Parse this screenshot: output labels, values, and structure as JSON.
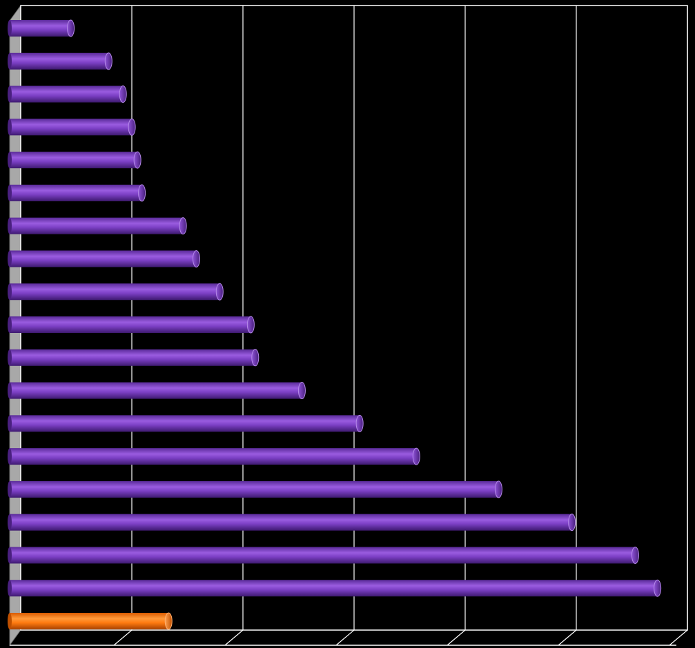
{
  "chart_data": {
    "type": "bar",
    "orientation": "horizontal",
    "style": "3d-cylinder",
    "title": "",
    "xlabel": "",
    "ylabel": "",
    "grid": true,
    "legend": "none",
    "categories": [
      "",
      "",
      "",
      "",
      "",
      "",
      "",
      "",
      "",
      "",
      "",
      "",
      "",
      "",
      "",
      "",
      "",
      "",
      ""
    ],
    "values": [
      5.5,
      8.9,
      10.2,
      11.0,
      11.5,
      11.9,
      15.6,
      16.8,
      18.9,
      21.7,
      22.1,
      26.3,
      31.5,
      36.6,
      44.0,
      50.6,
      56.3,
      58.3,
      14.3
    ],
    "highlight_index": 18,
    "xlim": [
      0,
      60
    ],
    "x_gridlines": [
      10,
      20,
      30,
      40,
      50,
      60
    ],
    "colors": {
      "bar": "#7b3fc4",
      "bar_highlight": "#ff7a10",
      "background": "#000000",
      "gridline": "#ffffff",
      "wall": "#a8a8a8"
    }
  }
}
